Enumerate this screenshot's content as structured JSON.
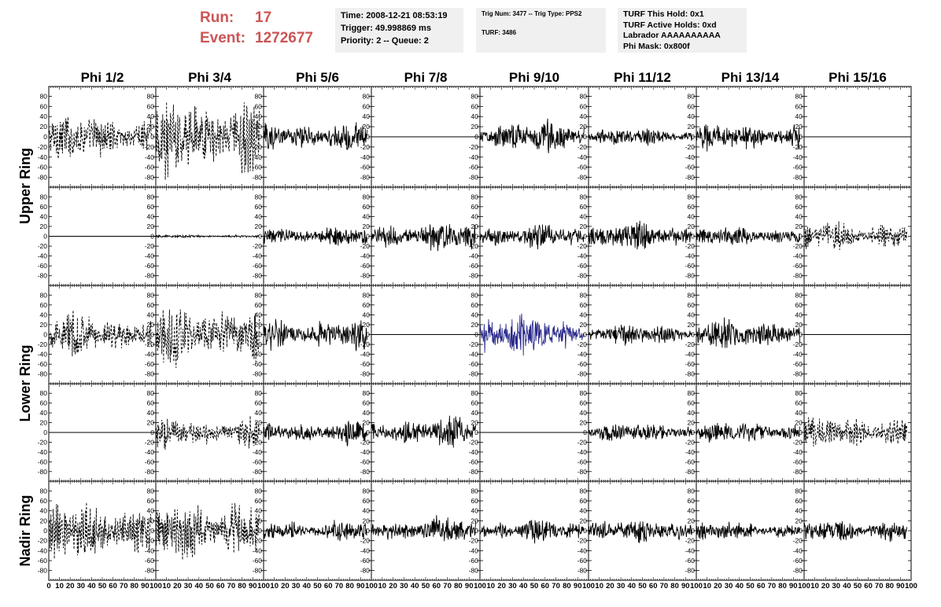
{
  "run_info": {
    "run_label": "Run:",
    "run_value": "17",
    "event_label": "Event:",
    "event_value": "1272677"
  },
  "time_box": {
    "time": "Time: 2008-12-21 08:53:19",
    "trigger": "Trigger: 49.998869 ms",
    "priority": "Priority: 2 -- Queue: 2"
  },
  "trig_box": {
    "trig_num": "Trig Num: 3477 -- Trig Type: PPS2",
    "turf": "TURF: 3486"
  },
  "turf_box": {
    "this_hold": "TURF This Hold: 0x1",
    "active_holds": "TURF Active Holds: 0xd",
    "labrador": "Labrador AAAAAAAAAA",
    "phi_mask": "Phi Mask: 0x800f"
  },
  "colors": {
    "trace": "#000000",
    "highlight_trace": "#2a2a8c",
    "run_text": "#cc5555",
    "box_bg": "#f0f0f0"
  },
  "chart_data": {
    "type": "line",
    "columns": [
      "Phi 1/2",
      "Phi 3/4",
      "Phi 5/6",
      "Phi 7/8",
      "Phi 9/10",
      "Phi 11/12",
      "Phi 13/14",
      "Phi 15/16"
    ],
    "row_groups": [
      {
        "label": "Upper Ring",
        "rows": [
          0,
          1
        ]
      },
      {
        "label": "Lower Ring",
        "rows": [
          2,
          3
        ]
      },
      {
        "label": "Nadir Ring",
        "rows": [
          4
        ]
      }
    ],
    "xlim": [
      0,
      100
    ],
    "ylim": [
      -90,
      90
    ],
    "x_ticks": [
      0,
      10,
      20,
      30,
      40,
      50,
      60,
      70,
      80,
      90,
      100
    ],
    "x_tick_labels": [
      "0",
      "10",
      "20",
      "30",
      "40",
      "50",
      "60",
      "70",
      "80",
      "90",
      "100"
    ],
    "y_ticks": [
      80,
      60,
      40,
      20,
      0,
      -20,
      -40,
      -60,
      -80
    ],
    "y_tick_labels": [
      "80",
      "60",
      "40",
      "20",
      "0",
      "-20",
      "-40",
      "-60",
      "-80"
    ],
    "trace_x_max": 96,
    "grid": false,
    "panels": [
      [
        "dashed",
        "dashed",
        "solid",
        "flat",
        "solid",
        "solid",
        "solid",
        "flat"
      ],
      [
        "flat",
        "solid",
        "solid",
        "solid",
        "solid",
        "solid",
        "solid",
        "dashed"
      ],
      [
        "dashed",
        "dashed",
        "solid",
        "flat",
        "highlight",
        "solid",
        "solid",
        "flat"
      ],
      [
        "flat",
        "dashed",
        "solid",
        "solid",
        "flat",
        "solid",
        "solid",
        "dashed"
      ],
      [
        "dashed",
        "dashed",
        "solid",
        "solid",
        "solid",
        "solid",
        "solid",
        "solid"
      ]
    ],
    "panel_amplitude": [
      [
        42,
        75,
        28,
        0,
        30,
        15,
        25,
        0
      ],
      [
        0,
        3,
        20,
        30,
        22,
        25,
        18,
        28
      ],
      [
        40,
        60,
        30,
        0,
        40,
        20,
        30,
        0
      ],
      [
        0,
        30,
        22,
        28,
        0,
        18,
        20,
        32
      ],
      [
        60,
        60,
        20,
        25,
        20,
        22,
        18,
        22
      ]
    ]
  }
}
